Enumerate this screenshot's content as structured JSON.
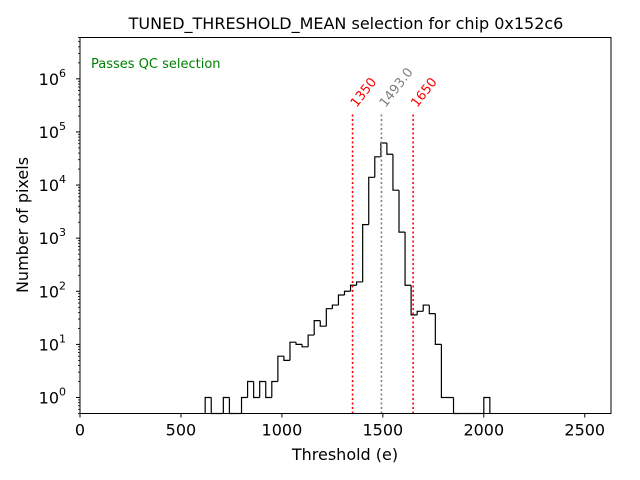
{
  "chart_data": {
    "type": "histogram",
    "title": "TUNED_THRESHOLD_MEAN selection for chip 0x152c6",
    "xlabel": "Threshold (e)",
    "ylabel": "Number of pixels",
    "yscale": "log",
    "xlim": [
      0,
      2630
    ],
    "ylim": [
      0.5,
      6000000
    ],
    "x_ticks": [
      0,
      500,
      1000,
      1500,
      2000,
      2500
    ],
    "x_tick_labels": [
      "0",
      "500",
      "1000",
      "1500",
      "2000",
      "2500"
    ],
    "y_ticks": [
      1,
      10,
      100,
      1000,
      10000,
      100000,
      1000000
    ],
    "y_tick_labels": [
      {
        "base": "10",
        "exp": "0"
      },
      {
        "base": "10",
        "exp": "1"
      },
      {
        "base": "10",
        "exp": "2"
      },
      {
        "base": "10",
        "exp": "3"
      },
      {
        "base": "10",
        "exp": "4"
      },
      {
        "base": "10",
        "exp": "5"
      },
      {
        "base": "10",
        "exp": "6"
      }
    ],
    "annotation": {
      "text": "Passes QC selection",
      "color": "#008000",
      "position": "top-left"
    },
    "histogram": {
      "bin_width": 30,
      "color": "#000000",
      "bins": [
        [
          620,
          1
        ],
        [
          650,
          0
        ],
        [
          680,
          0
        ],
        [
          710,
          1
        ],
        [
          740,
          0
        ],
        [
          770,
          0
        ],
        [
          800,
          1
        ],
        [
          830,
          2
        ],
        [
          860,
          1
        ],
        [
          890,
          2
        ],
        [
          920,
          1
        ],
        [
          950,
          2
        ],
        [
          980,
          6
        ],
        [
          1010,
          5
        ],
        [
          1040,
          11
        ],
        [
          1070,
          10
        ],
        [
          1100,
          9
        ],
        [
          1130,
          15
        ],
        [
          1160,
          28
        ],
        [
          1190,
          22
        ],
        [
          1220,
          47
        ],
        [
          1250,
          55
        ],
        [
          1280,
          85
        ],
        [
          1310,
          100
        ],
        [
          1340,
          130
        ],
        [
          1370,
          150
        ],
        [
          1400,
          1800
        ],
        [
          1430,
          14000
        ],
        [
          1460,
          34000
        ],
        [
          1490,
          62000
        ],
        [
          1520,
          38000
        ],
        [
          1550,
          8000
        ],
        [
          1580,
          1300
        ],
        [
          1610,
          130
        ],
        [
          1640,
          36
        ],
        [
          1670,
          42
        ],
        [
          1700,
          55
        ],
        [
          1730,
          38
        ],
        [
          1760,
          10
        ],
        [
          1790,
          1
        ],
        [
          1820,
          1
        ],
        [
          1850,
          0
        ],
        [
          1880,
          0
        ],
        [
          1910,
          0
        ],
        [
          1940,
          0
        ],
        [
          1970,
          0
        ],
        [
          2000,
          1
        ]
      ]
    },
    "vlines": [
      {
        "x": 1350,
        "label": "1350",
        "color": "#ff0000",
        "style": "dotted"
      },
      {
        "x": 1493.0,
        "label": "1493.0",
        "color": "#808080",
        "style": "dotted"
      },
      {
        "x": 1650,
        "label": "1650",
        "color": "#ff0000",
        "style": "dotted"
      }
    ]
  }
}
